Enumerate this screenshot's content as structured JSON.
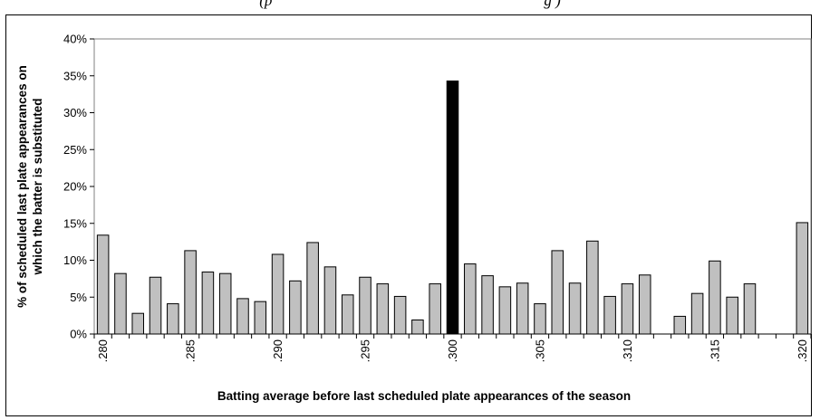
{
  "top_caption": "(p",
  "top_caption_tail": "g )",
  "chart_data": {
    "type": "bar",
    "xlabel": "Batting average before last scheduled  plate appearances of the season",
    "ylabel_line1": "% of scheduled last plate appearances on",
    "ylabel_line2": "which the batter is substituted",
    "ylim": [
      0,
      40
    ],
    "yticks": [
      "0%",
      "5%",
      "10%",
      "15%",
      "20%",
      "25%",
      "30%",
      "35%",
      "40%"
    ],
    "ytick_values": [
      0,
      5,
      10,
      15,
      20,
      25,
      30,
      35,
      40
    ],
    "categories": [
      ".280",
      ".281",
      ".282",
      ".283",
      ".284",
      ".285",
      ".286",
      ".287",
      ".288",
      ".289",
      ".290",
      ".291",
      ".292",
      ".293",
      ".294",
      ".295",
      ".296",
      ".297",
      ".298",
      ".299",
      ".300",
      ".301",
      ".302",
      ".303",
      ".304",
      ".305",
      ".306",
      ".307",
      ".308",
      ".309",
      ".310",
      ".311",
      ".312",
      ".313",
      ".314",
      ".315",
      ".316",
      ".317",
      ".318",
      ".319",
      ".320"
    ],
    "xtick_labels_shown": [
      ".280",
      ".285",
      ".290",
      ".295",
      ".300",
      ".305",
      ".310",
      ".315",
      ".320"
    ],
    "values": [
      13.4,
      8.2,
      2.8,
      7.7,
      4.1,
      11.3,
      8.4,
      8.2,
      4.8,
      4.4,
      10.8,
      7.2,
      12.4,
      9.1,
      5.3,
      7.7,
      6.8,
      5.1,
      1.9,
      6.8,
      34.3,
      9.5,
      7.9,
      6.4,
      6.9,
      4.1,
      11.3,
      6.9,
      12.6,
      5.1,
      6.8,
      8.0,
      0,
      2.4,
      5.5,
      9.9,
      5.0,
      6.8,
      0,
      0,
      15.1
    ],
    "highlight_category": ".300",
    "colors": {
      "bar": "#c0c0c0",
      "highlight": "#000000",
      "bar_edge": "#000000"
    },
    "grid": false
  }
}
